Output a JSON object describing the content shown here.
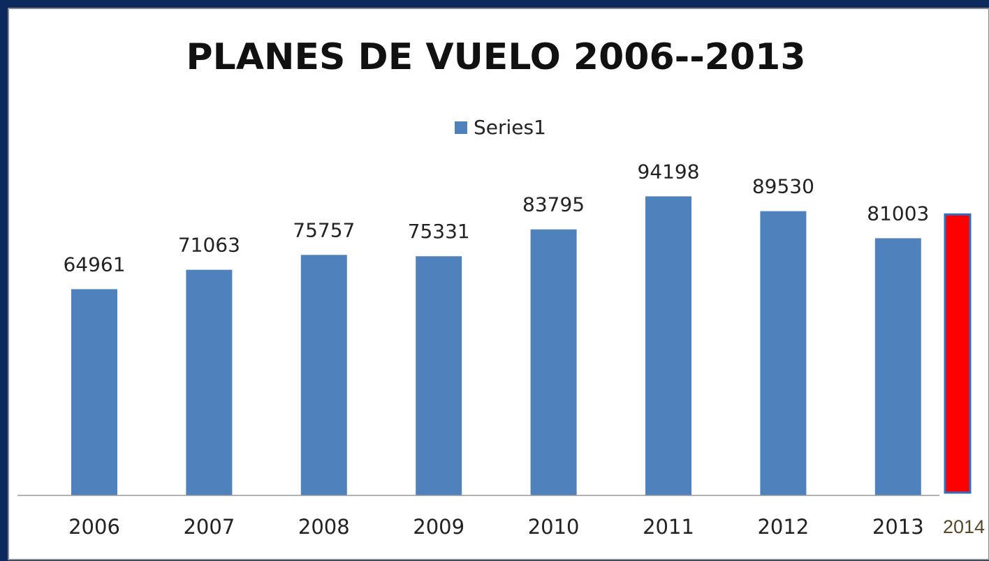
{
  "chart_data": {
    "type": "bar",
    "title": "PLANES DE VUELO 2006--2013",
    "categories": [
      "2006",
      "2007",
      "2008",
      "2009",
      "2010",
      "2011",
      "2012",
      "2013"
    ],
    "series": [
      {
        "name": "Series1",
        "color": "#4f81bd",
        "values": [
          64961,
          71063,
          75757,
          75331,
          83795,
          94198,
          89530,
          81003
        ]
      }
    ],
    "extra_bar": {
      "category": "2014",
      "value": 88500,
      "color": "#ff0000",
      "edge_color": "#2e6fc0"
    },
    "ylim": [
      0,
      100000
    ],
    "legend": "top"
  }
}
